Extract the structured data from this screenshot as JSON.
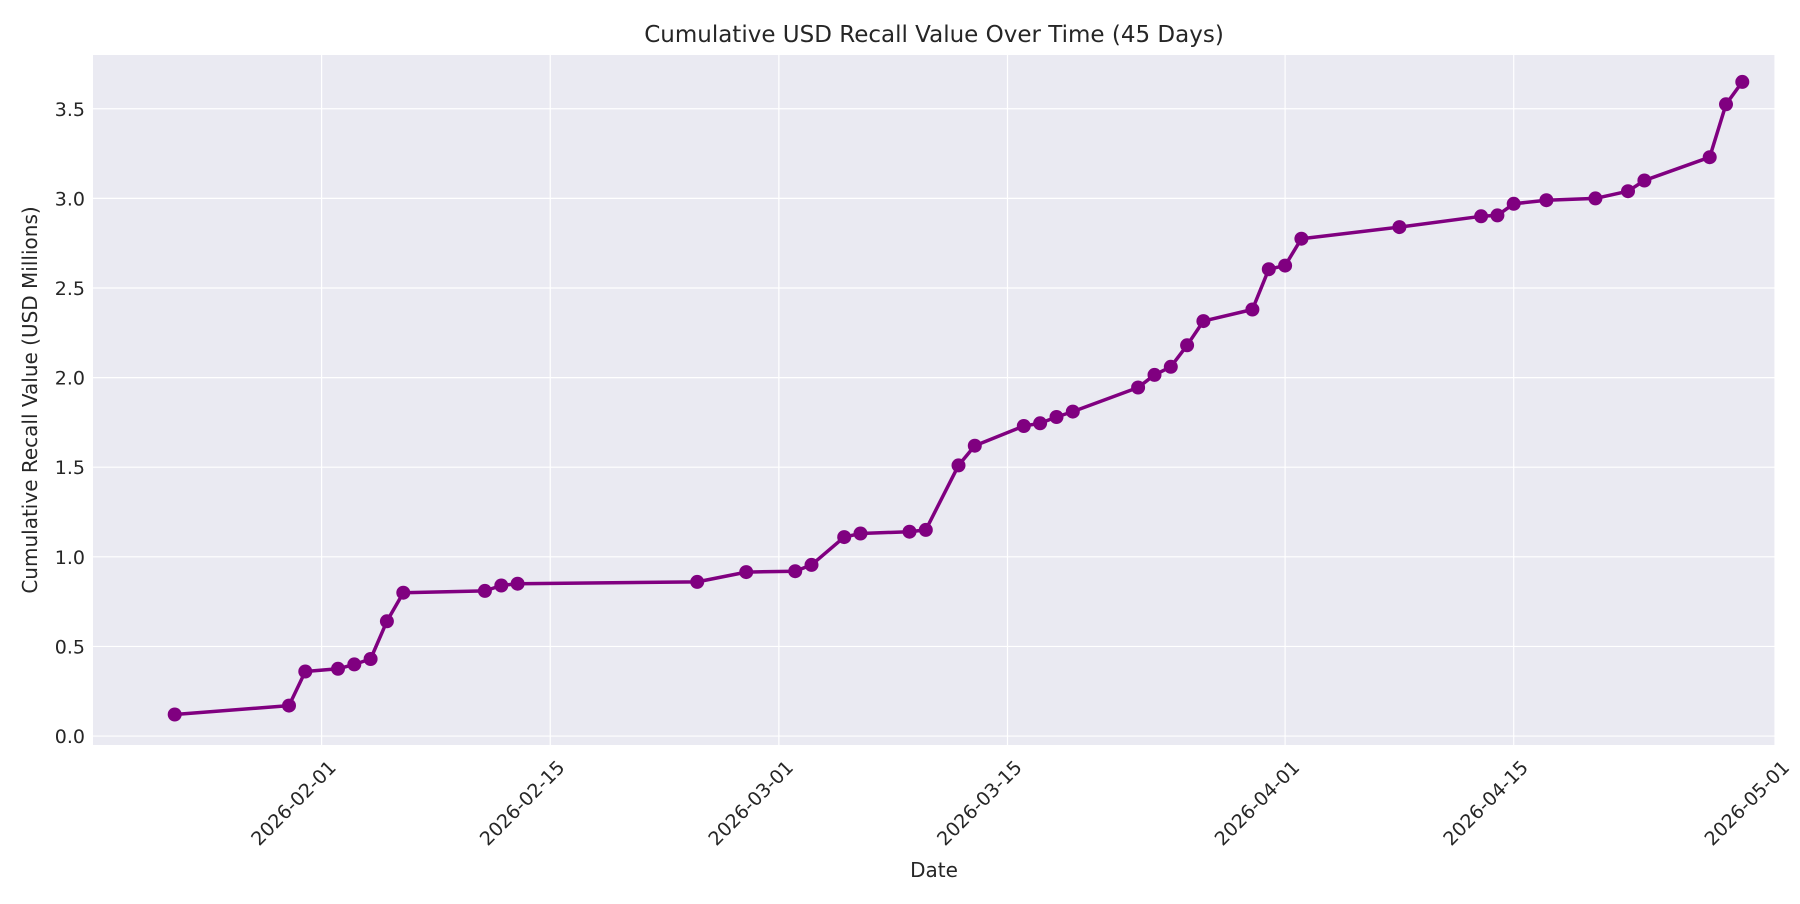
{
  "chart_data": {
    "type": "line",
    "title": "Cumulative USD Recall Value Over Time (45 Days)",
    "xlabel": "Date",
    "ylabel": "Cumulative Recall Value (USD Millions)",
    "x_axis_type": "date",
    "xlim": [
      "2026-01-18",
      "2026-05-01"
    ],
    "ylim": [
      -0.05,
      3.8
    ],
    "x_ticks": [
      "2026-02-01",
      "2026-02-15",
      "2026-03-01",
      "2026-03-15",
      "2026-04-01",
      "2026-04-15",
      "2026-05-01"
    ],
    "y_ticks": [
      0.0,
      0.5,
      1.0,
      1.5,
      2.0,
      2.5,
      3.0,
      3.5
    ],
    "y_tick_labels": [
      "0.0",
      "0.5",
      "1.0",
      "1.5",
      "2.0",
      "2.5",
      "3.0",
      "3.5"
    ],
    "grid": true,
    "legend": "none",
    "colors": {
      "line": "#800080",
      "plot_background": "#eaeaf2",
      "grid": "#ffffff"
    },
    "series": [
      {
        "name": "",
        "x": [
          "2026-01-23",
          "2026-01-30",
          "2026-01-31",
          "2026-02-02",
          "2026-02-03",
          "2026-02-04",
          "2026-02-05",
          "2026-02-06",
          "2026-02-11",
          "2026-02-12",
          "2026-02-13",
          "2026-02-24",
          "2026-02-27",
          "2026-03-02",
          "2026-03-03",
          "2026-03-05",
          "2026-03-06",
          "2026-03-09",
          "2026-03-10",
          "2026-03-12",
          "2026-03-13",
          "2026-03-16",
          "2026-03-17",
          "2026-03-18",
          "2026-03-19",
          "2026-03-23",
          "2026-03-24",
          "2026-03-25",
          "2026-03-26",
          "2026-03-27",
          "2026-03-30",
          "2026-03-31",
          "2026-04-01",
          "2026-04-02",
          "2026-04-08",
          "2026-04-13",
          "2026-04-14",
          "2026-04-15",
          "2026-04-17",
          "2026-04-20",
          "2026-04-22",
          "2026-04-23",
          "2026-04-27",
          "2026-04-28",
          "2026-04-29"
        ],
        "y": [
          0.12,
          0.17,
          0.36,
          0.375,
          0.4,
          0.43,
          0.64,
          0.8,
          0.81,
          0.84,
          0.85,
          0.86,
          0.915,
          0.92,
          0.955,
          1.11,
          1.13,
          1.14,
          1.15,
          1.51,
          1.62,
          1.73,
          1.745,
          1.78,
          1.81,
          1.945,
          2.015,
          2.06,
          2.18,
          2.315,
          2.38,
          2.605,
          2.625,
          2.775,
          2.84,
          2.9,
          2.905,
          2.97,
          2.99,
          3.0,
          3.04,
          3.1,
          3.23,
          3.525,
          3.65
        ]
      }
    ]
  }
}
